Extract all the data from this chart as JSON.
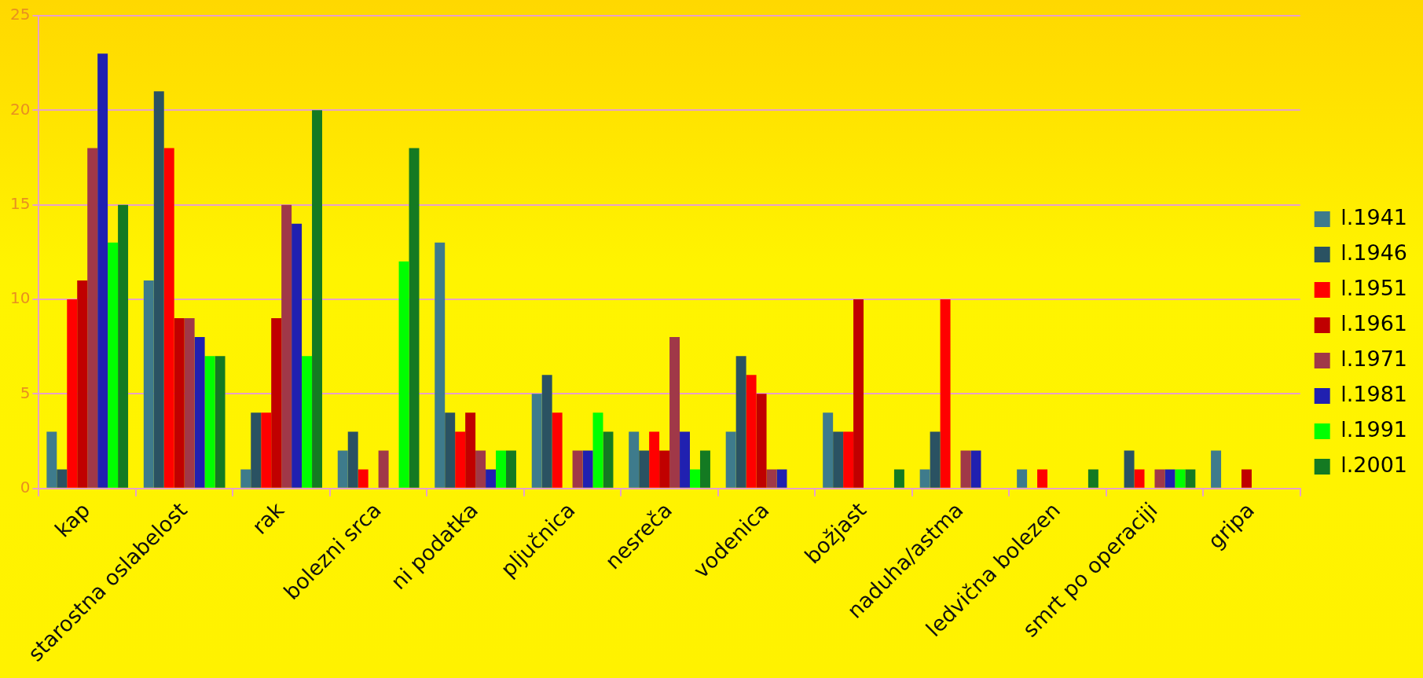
{
  "chart_data": {
    "type": "bar",
    "categories": [
      "kap",
      "starostna oslabelost",
      "rak",
      "bolezni srca",
      "ni podatka",
      "pljučnica",
      "nesreča",
      "vodenica",
      "božjast",
      "naduha/astma",
      "ledvična bolezen",
      "smrt po operaciji",
      "gripa"
    ],
    "series": [
      {
        "name": "l.1941",
        "color": "#3e7b8c",
        "values": [
          3,
          11,
          1,
          2,
          13,
          5,
          3,
          3,
          4,
          1,
          1,
          0,
          2
        ]
      },
      {
        "name": "l.1946",
        "color": "#2a5262",
        "values": [
          1,
          21,
          4,
          3,
          4,
          6,
          2,
          7,
          3,
          3,
          0,
          2,
          0
        ]
      },
      {
        "name": "l.1951",
        "color": "#ff0000",
        "values": [
          10,
          18,
          4,
          1,
          3,
          4,
          3,
          6,
          3,
          10,
          1,
          1,
          0
        ]
      },
      {
        "name": "l.1961",
        "color": "#c00000",
        "values": [
          11,
          9,
          9,
          0,
          4,
          0,
          2,
          5,
          10,
          0,
          0,
          0,
          1
        ]
      },
      {
        "name": "l.1971",
        "color": "#a03848",
        "values": [
          18,
          9,
          15,
          2,
          2,
          2,
          8,
          1,
          0,
          2,
          0,
          1,
          0
        ]
      },
      {
        "name": "l.1981",
        "color": "#2020b0",
        "values": [
          23,
          8,
          14,
          0,
          1,
          2,
          3,
          1,
          0,
          2,
          0,
          1,
          0
        ]
      },
      {
        "name": "l.1991",
        "color": "#00ff00",
        "values": [
          13,
          7,
          7,
          12,
          2,
          4,
          1,
          0,
          0,
          0,
          0,
          1,
          0
        ]
      },
      {
        "name": "l.2001",
        "color": "#147a22",
        "values": [
          15,
          7,
          20,
          18,
          2,
          3,
          2,
          0,
          1,
          0,
          1,
          1,
          0
        ]
      }
    ],
    "ylim": [
      0,
      25
    ],
    "yticks": [
      0,
      5,
      10,
      15,
      20,
      25
    ],
    "grid": "y",
    "legend": "right"
  }
}
